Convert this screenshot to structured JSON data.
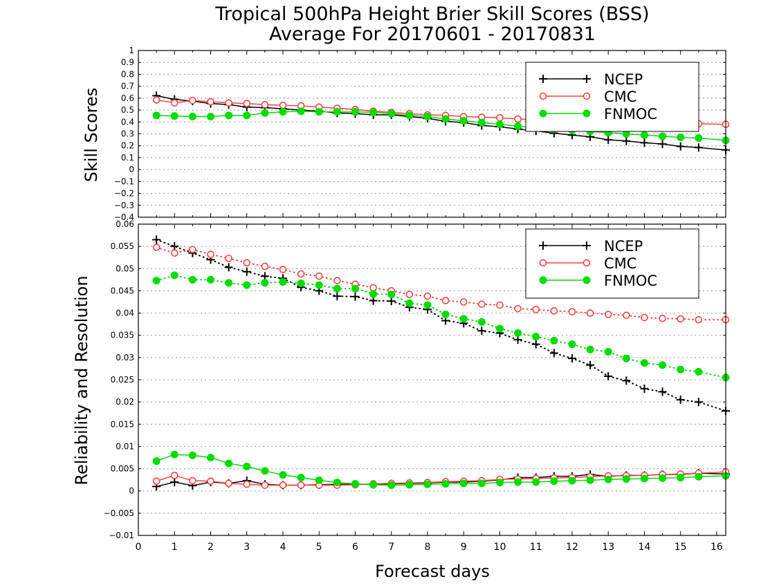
{
  "title_line1": "Tropical 500hPa Height Brier Skill Scores (BSS)",
  "title_line2": "Average For 20170601 - 20170831",
  "xlabel": "Forecast days",
  "colors": {
    "NCEP": "#000000",
    "CMC": "#ff4040",
    "FNMOC": "#00dd00"
  },
  "chart_data": [
    {
      "type": "line",
      "panel": "top",
      "ylabel": "Skill Scores",
      "ylim": [
        -0.4,
        1
      ],
      "xlim": [
        0,
        16.25
      ],
      "yticks": [
        "1",
        "0.9",
        "0.8",
        "0.7",
        "0.6",
        "0.5",
        "0.4",
        "0.3",
        "0.2",
        "0.1",
        "0",
        "−0.1",
        "−0.2",
        "−0.3",
        "−0.4"
      ],
      "ytick_values": [
        1,
        0.9,
        0.8,
        0.7,
        0.6,
        0.5,
        0.4,
        0.3,
        0.2,
        0.1,
        0,
        -0.1,
        -0.2,
        -0.3,
        -0.4
      ],
      "xticks": [
        "0",
        "1",
        "2",
        "3",
        "4",
        "5",
        "6",
        "7",
        "8",
        "9",
        "10",
        "11",
        "12",
        "13",
        "14",
        "15",
        "16"
      ],
      "grid": true,
      "legend_position": "top-right",
      "legend": [
        "NCEP",
        "CMC",
        "FNMOC"
      ],
      "x": [
        0.5,
        1,
        1.5,
        2,
        2.5,
        3,
        3.5,
        4,
        4.5,
        5,
        5.5,
        6,
        6.5,
        7,
        7.5,
        8,
        8.5,
        9,
        9.5,
        10,
        10.5,
        11,
        11.5,
        12,
        12.5,
        13,
        13.5,
        14,
        14.5,
        15,
        15.5,
        16.25
      ],
      "series": [
        {
          "name": "NCEP",
          "style": "solid",
          "marker": "plus",
          "values": [
            0.62,
            0.59,
            0.575,
            0.555,
            0.545,
            0.525,
            0.52,
            0.51,
            0.5,
            0.49,
            0.475,
            0.47,
            0.46,
            0.46,
            0.445,
            0.43,
            0.405,
            0.395,
            0.37,
            0.36,
            0.34,
            0.325,
            0.305,
            0.29,
            0.275,
            0.25,
            0.24,
            0.225,
            0.215,
            0.195,
            0.185,
            0.165
          ]
        },
        {
          "name": "CMC",
          "style": "solid",
          "marker": "open-circle",
          "values": [
            0.585,
            0.56,
            0.58,
            0.57,
            0.56,
            0.555,
            0.545,
            0.54,
            0.535,
            0.525,
            0.515,
            0.505,
            0.49,
            0.48,
            0.47,
            0.46,
            0.455,
            0.445,
            0.44,
            0.435,
            0.425,
            0.42,
            0.415,
            0.41,
            0.405,
            0.4,
            0.395,
            0.39,
            0.39,
            0.385,
            0.385,
            0.38
          ]
        },
        {
          "name": "FNMOC",
          "style": "solid",
          "marker": "filled-circle",
          "values": [
            0.455,
            0.45,
            0.445,
            0.445,
            0.455,
            0.455,
            0.475,
            0.485,
            0.49,
            0.485,
            0.485,
            0.485,
            0.48,
            0.47,
            0.455,
            0.445,
            0.425,
            0.41,
            0.395,
            0.38,
            0.365,
            0.35,
            0.34,
            0.33,
            0.32,
            0.31,
            0.3,
            0.29,
            0.28,
            0.27,
            0.265,
            0.245
          ]
        }
      ]
    },
    {
      "type": "line",
      "panel": "bottom",
      "ylabel": "Reliability and Resolution",
      "ylim": [
        -0.01,
        0.06
      ],
      "xlim": [
        0,
        16.25
      ],
      "yticks": [
        "0.06",
        "0.055",
        "0.05",
        "0.045",
        "0.04",
        "0.035",
        "0.03",
        "0.025",
        "0.02",
        "0.015",
        "0.01",
        "0.005",
        "0",
        "−0.005",
        "−0.01"
      ],
      "ytick_values": [
        0.06,
        0.055,
        0.05,
        0.045,
        0.04,
        0.035,
        0.03,
        0.025,
        0.02,
        0.015,
        0.01,
        0.005,
        0,
        -0.005,
        -0.01
      ],
      "xticks": [
        "0",
        "1",
        "2",
        "3",
        "4",
        "5",
        "6",
        "7",
        "8",
        "9",
        "10",
        "11",
        "12",
        "13",
        "14",
        "15",
        "16"
      ],
      "grid": true,
      "legend_position": "top-right",
      "legend": [
        "NCEP",
        "CMC",
        "FNMOC"
      ],
      "x": [
        0.5,
        1,
        1.5,
        2,
        2.5,
        3,
        3.5,
        4,
        4.5,
        5,
        5.5,
        6,
        6.5,
        7,
        7.5,
        8,
        8.5,
        9,
        9.5,
        10,
        10.5,
        11,
        11.5,
        12,
        12.5,
        13,
        13.5,
        14,
        14.5,
        15,
        15.5,
        16.25
      ],
      "series": [
        {
          "name": "NCEP",
          "component": "resolution",
          "style": "dotted",
          "marker": "plus",
          "values": [
            0.0565,
            0.055,
            0.0535,
            0.052,
            0.0503,
            0.0493,
            0.0483,
            0.0478,
            0.0458,
            0.045,
            0.0438,
            0.0437,
            0.0428,
            0.0427,
            0.0413,
            0.0408,
            0.0383,
            0.0377,
            0.036,
            0.0355,
            0.034,
            0.033,
            0.031,
            0.0298,
            0.0283,
            0.0258,
            0.0248,
            0.023,
            0.0223,
            0.0205,
            0.02,
            0.018
          ]
        },
        {
          "name": "CMC",
          "component": "resolution",
          "style": "dotted",
          "marker": "open-circle",
          "values": [
            0.0548,
            0.0535,
            0.0543,
            0.0532,
            0.0523,
            0.0513,
            0.0505,
            0.0498,
            0.0488,
            0.0483,
            0.0473,
            0.0465,
            0.0457,
            0.045,
            0.0442,
            0.0438,
            0.0428,
            0.0425,
            0.042,
            0.0418,
            0.041,
            0.0408,
            0.0405,
            0.0403,
            0.04,
            0.0397,
            0.0395,
            0.039,
            0.0388,
            0.0387,
            0.0385,
            0.0385
          ]
        },
        {
          "name": "FNMOC",
          "component": "resolution",
          "style": "dotted",
          "marker": "filled-circle",
          "values": [
            0.0473,
            0.0485,
            0.0475,
            0.0475,
            0.0468,
            0.0463,
            0.0468,
            0.047,
            0.0467,
            0.0463,
            0.0455,
            0.0455,
            0.0443,
            0.0442,
            0.0422,
            0.0418,
            0.0397,
            0.0387,
            0.038,
            0.0365,
            0.0355,
            0.0347,
            0.0338,
            0.033,
            0.0318,
            0.0313,
            0.0298,
            0.0288,
            0.0283,
            0.0273,
            0.0268,
            0.0255
          ]
        },
        {
          "name": "NCEP",
          "component": "reliability",
          "style": "solid",
          "marker": "plus",
          "values": [
            0.001,
            0.002,
            0.0012,
            0.002,
            0.0017,
            0.0023,
            0.0015,
            0.0013,
            0.0013,
            0.0014,
            0.0015,
            0.0015,
            0.0015,
            0.0016,
            0.0017,
            0.0018,
            0.002,
            0.002,
            0.0022,
            0.0025,
            0.003,
            0.003,
            0.0033,
            0.0033,
            0.0037,
            0.0033,
            0.0035,
            0.0035,
            0.0037,
            0.0037,
            0.004,
            0.0038
          ]
        },
        {
          "name": "CMC",
          "component": "reliability",
          "style": "solid",
          "marker": "open-circle",
          "values": [
            0.0022,
            0.0035,
            0.0023,
            0.0022,
            0.0017,
            0.0015,
            0.0013,
            0.0013,
            0.0013,
            0.0013,
            0.0013,
            0.0014,
            0.0016,
            0.0017,
            0.0018,
            0.0019,
            0.0021,
            0.0022,
            0.0023,
            0.0026,
            0.0027,
            0.0028,
            0.0029,
            0.003,
            0.0032,
            0.0034,
            0.0034,
            0.0035,
            0.0037,
            0.0038,
            0.004,
            0.0043
          ]
        },
        {
          "name": "FNMOC",
          "component": "reliability",
          "style": "solid",
          "marker": "filled-circle",
          "values": [
            0.0067,
            0.0082,
            0.008,
            0.0075,
            0.0062,
            0.0055,
            0.0045,
            0.0036,
            0.003,
            0.0024,
            0.0019,
            0.0016,
            0.0014,
            0.0013,
            0.0014,
            0.0015,
            0.0016,
            0.0017,
            0.0017,
            0.0019,
            0.002,
            0.002,
            0.0022,
            0.0023,
            0.0024,
            0.0026,
            0.0027,
            0.0028,
            0.0029,
            0.003,
            0.0032,
            0.0034
          ]
        }
      ]
    }
  ]
}
